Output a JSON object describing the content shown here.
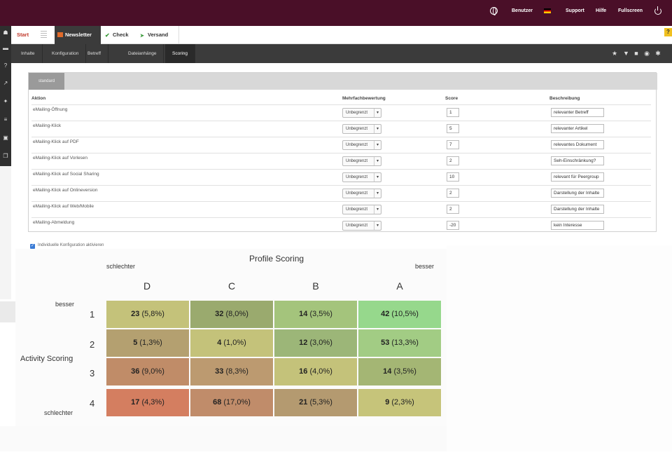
{
  "topbar": {
    "items": [
      "Benutzer",
      "Support",
      "Hilfe",
      "Fullscreen"
    ]
  },
  "tabs": [
    {
      "label": "Start"
    },
    {
      "label": "Newsletter"
    },
    {
      "label": "Check"
    },
    {
      "label": "Versand"
    }
  ],
  "help_label": "?",
  "subnav": [
    "Inhalte",
    "Konfiguration",
    "Betreff",
    "Dateianhänge",
    "Scoring"
  ],
  "panel": {
    "tab_label": "standard",
    "headers": {
      "aktion": "Aktion",
      "mehrfach": "Mehrfachbewertung",
      "score": "Score",
      "beschreibung": "Beschreibung"
    },
    "rows": [
      {
        "aktion": "eMailing-Öffnung",
        "mehrfach": "Unbegrenzt",
        "score": "1",
        "beschreibung": "relevanter Betreff"
      },
      {
        "aktion": "eMailing-Klick",
        "mehrfach": "Unbegrenzt",
        "score": "5",
        "beschreibung": "relevanter Artikel"
      },
      {
        "aktion": "eMailing-Klick auf PDF",
        "mehrfach": "Unbegrenzt",
        "score": "7",
        "beschreibung": "relevantes Dokument"
      },
      {
        "aktion": "eMailing-Klick auf Vorlesen",
        "mehrfach": "Unbegrenzt",
        "score": "2",
        "beschreibung": "Seh-Einschränkung?"
      },
      {
        "aktion": "eMailing-Klick auf Social Sharing",
        "mehrfach": "Unbegrenzt",
        "score": "10",
        "beschreibung": "relevant für Peergroup"
      },
      {
        "aktion": "eMailing-Klick auf Onlineversion",
        "mehrfach": "Unbegrenzt",
        "score": "2",
        "beschreibung": "Darstellung der Inhalte"
      },
      {
        "aktion": "eMailing-Klick auf Web/Mobile",
        "mehrfach": "Unbegrenzt",
        "score": "2",
        "beschreibung": "Darstellung der Inhalte"
      },
      {
        "aktion": "eMailing-Abmeldung",
        "mehrfach": "Unbegrenzt",
        "score": "-20",
        "beschreibung": "kein Interesse"
      }
    ]
  },
  "checkbox_label": "Individuelle Konfiguration aktivieren",
  "matrix": {
    "title": "Profile Scoring",
    "profile_low": "schlechter",
    "profile_high": "besser",
    "activity_title": "Activity Scoring",
    "activity_high": "besser",
    "activity_low": "schlechter",
    "columns": [
      "D",
      "C",
      "B",
      "A"
    ],
    "rows": [
      "1",
      "2",
      "3",
      "4"
    ],
    "cells": [
      [
        {
          "count": "23",
          "pct": "(5,8%)"
        },
        {
          "count": "32",
          "pct": "(8,0%)"
        },
        {
          "count": "14",
          "pct": "(3,5%)"
        },
        {
          "count": "42",
          "pct": "(10,5%)"
        }
      ],
      [
        {
          "count": "5",
          "pct": "(1,3%)"
        },
        {
          "count": "4",
          "pct": "(1,0%)"
        },
        {
          "count": "12",
          "pct": "(3,0%)"
        },
        {
          "count": "53",
          "pct": "(13,3%)"
        }
      ],
      [
        {
          "count": "36",
          "pct": "(9,0%)"
        },
        {
          "count": "33",
          "pct": "(8,3%)"
        },
        {
          "count": "16",
          "pct": "(4,0%)"
        },
        {
          "count": "14",
          "pct": "(3,5%)"
        }
      ],
      [
        {
          "count": "17",
          "pct": "(4,3%)"
        },
        {
          "count": "68",
          "pct": "(17,0%)"
        },
        {
          "count": "21",
          "pct": "(5,3%)"
        },
        {
          "count": "9",
          "pct": "(2,3%)"
        }
      ]
    ],
    "colors": [
      [
        "#c4c27a",
        "#9aaa6e",
        "#a4c47c",
        "#96d88c"
      ],
      [
        "#b4a070",
        "#c4c27a",
        "#9cb678",
        "#a2cc84"
      ],
      [
        "#c08c68",
        "#bc9a70",
        "#c4c27a",
        "#a4b674"
      ],
      [
        "#d47e60",
        "#c08c6a",
        "#b49a70",
        "#c6c47a"
      ]
    ]
  }
}
